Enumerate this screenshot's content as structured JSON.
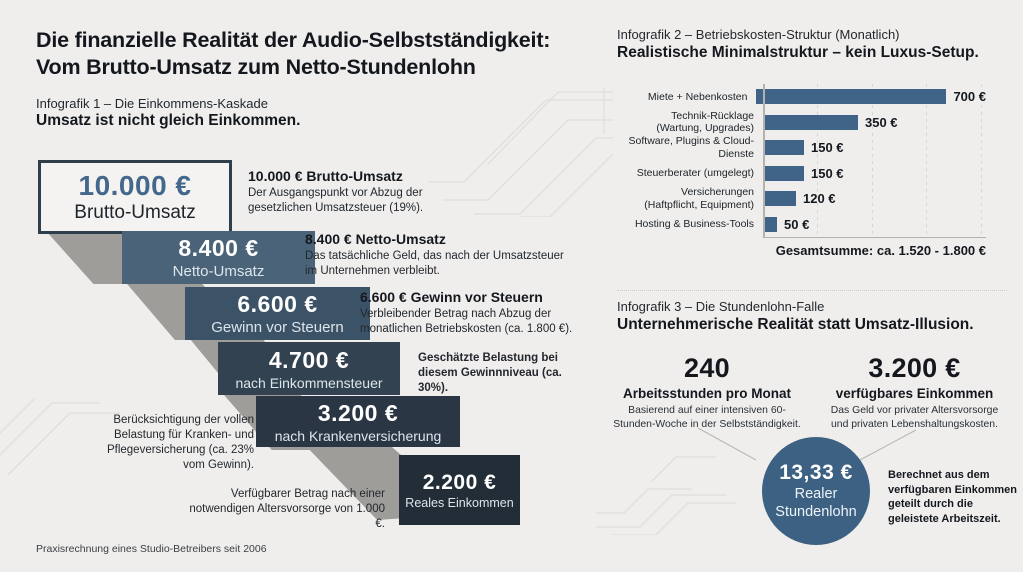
{
  "page": {
    "title_line1": "Die finanzielle Realität der Audio-Selbstständigkeit:",
    "title_line2": "Vom Brutto-Umsatz zum Netto-Stundenlohn",
    "footer": "Praxisrechnung eines Studio-Betreibers seit 2006"
  },
  "infographic1": {
    "kicker": "Infografik 1 – Die Einkommens-Kaskade",
    "headline": "Umsatz ist nicht gleich Einkommen.",
    "steps": [
      {
        "value": "10.000 €",
        "label": "Brutto-Umsatz"
      },
      {
        "value": "8.400 €",
        "label": "Netto-Umsatz"
      },
      {
        "value": "6.600 €",
        "label": "Gewinn vor Steuern"
      },
      {
        "value": "4.700 €",
        "label": "nach Einkommensteuer"
      },
      {
        "value": "3.200 €",
        "label": "nach Krankenversicherung"
      },
      {
        "value": "2.200 €",
        "label": "Reales Einkommen"
      }
    ],
    "annotations": {
      "a1": {
        "title": "10.000 € Brutto-Umsatz",
        "desc": "Der Ausgangspunkt vor Abzug der gesetzlichen Umsatzsteuer (19%)."
      },
      "a2": {
        "title": "8.400 € Netto-Umsatz",
        "desc": "Das tatsächliche Geld, das nach der Umsatzsteuer im Unternehmen verbleibt."
      },
      "a3": {
        "title": "6.600 € Gewinn vor Steuern",
        "desc": "Verbleibender Betrag nach Abzug der monatlichen Betriebskosten (ca. 1.800 €)."
      },
      "a4": {
        "desc": "Geschätzte Belastung bei diesem Gewinnniveau (ca. 30%)."
      },
      "a5": {
        "desc": "Berücksichtigung der vollen Belastung für Kranken- und Pflegeversicherung (ca. 23% vom Gewinn)."
      },
      "a6": {
        "desc": "Verfügbarer Betrag nach einer notwendigen Altersvorsorge von 1.000 €."
      }
    }
  },
  "infographic2": {
    "kicker": "Infografik 2 – Betriebskosten-Struktur (Monatlich)",
    "headline": "Realistische Minimalstruktur – kein Luxus-Setup.",
    "total": "Gesamtsumme: ca. 1.520 - 1.800 €"
  },
  "infographic3": {
    "kicker": "Infografik 3 – Die Stundenlohn-Falle",
    "headline": "Unternehmerische Realität statt Umsatz-Illusion.",
    "stat_hours": {
      "value": "240",
      "label": "Arbeitsstunden pro Monat",
      "desc": "Basierend auf einer intensiven 60-Stunden-Woche in der Selbstständigkeit."
    },
    "stat_income": {
      "value": "3.200 €",
      "label": "verfügbares Einkommen",
      "desc": "Das Geld vor privater Altersvorsorge und privaten Lebenshaltungskosten."
    },
    "circle": {
      "value": "13,33 €",
      "label_line1": "Realer",
      "label_line2": "Stundenlohn"
    },
    "note": "Berechnet aus dem verfügbaren Einkommen geteilt durch die geleistete Arbeitszeit."
  },
  "chart_data": [
    {
      "type": "bar",
      "subtype": "waterfall-cascade",
      "title": "Die Einkommens-Kaskade",
      "categories": [
        "Brutto-Umsatz",
        "Netto-Umsatz",
        "Gewinn vor Steuern",
        "nach Einkommensteuer",
        "nach Krankenversicherung",
        "Reales Einkommen"
      ],
      "values": [
        10000,
        8400,
        6600,
        4700,
        3200,
        2200
      ],
      "value_labels": [
        "10.000 €",
        "8.400 €",
        "6.600 €",
        "4.700 €",
        "3.200 €",
        "2.200 €"
      ],
      "unit": "EUR"
    },
    {
      "type": "bar",
      "orientation": "horizontal",
      "title": "Betriebskosten-Struktur (Monatlich)",
      "categories": [
        "Miete + Nebenkosten",
        "Technik-Rücklage\n(Wartung, Upgrades)",
        "Software, Plugins & Cloud-Dienste",
        "Steuerberater (umgelegt)",
        "Versicherungen\n(Haftpflicht, Equipment)",
        "Hosting & Business-Tools"
      ],
      "values": [
        700,
        350,
        150,
        150,
        120,
        50
      ],
      "value_labels": [
        "700 €",
        "350 €",
        "150 €",
        "150 €",
        "120 €",
        "50 €"
      ],
      "unit": "EUR",
      "xlim": [
        0,
        820
      ],
      "gridlines": [
        200,
        400,
        600,
        800
      ],
      "grid": "dashed-vertical",
      "legend": "none",
      "total_label": "Gesamtsumme: ca. 1.520 - 1.800 €"
    }
  ],
  "colors": {
    "background": "#efeeec",
    "ink": "#15191f",
    "accent_steel_blue": "#3f6488",
    "circle_blue": "#3c6182",
    "shadow_gray": "#9e9d9a",
    "step_border": "#2f3e4b",
    "cascade_steps": [
      "#f4f3f1",
      "#4a6379",
      "#3c5266",
      "#324250",
      "#2a3643",
      "#232d38"
    ]
  }
}
